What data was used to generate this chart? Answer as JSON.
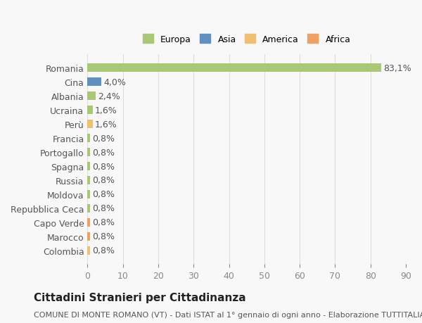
{
  "categories": [
    "Colombia",
    "Marocco",
    "Capo Verde",
    "Repubblica Ceca",
    "Moldova",
    "Russia",
    "Spagna",
    "Portogallo",
    "Francia",
    "Perù",
    "Ucraina",
    "Albania",
    "Cina",
    "Romania"
  ],
  "values": [
    0.8,
    0.8,
    0.8,
    0.8,
    0.8,
    0.8,
    0.8,
    0.8,
    0.8,
    1.6,
    1.6,
    2.4,
    4.0,
    83.1
  ],
  "labels": [
    "0,8%",
    "0,8%",
    "0,8%",
    "0,8%",
    "0,8%",
    "0,8%",
    "0,8%",
    "0,8%",
    "0,8%",
    "1,6%",
    "1,6%",
    "2,4%",
    "4,0%",
    "83,1%"
  ],
  "colors": [
    "#f0c070",
    "#f0a060",
    "#f0a060",
    "#a8c878",
    "#a8c878",
    "#a8c878",
    "#a8c878",
    "#a8c878",
    "#a8c878",
    "#f0c070",
    "#a8c878",
    "#a8c878",
    "#6090c0",
    "#a8c878"
  ],
  "continent": [
    "America",
    "Africa",
    "Africa",
    "Europa",
    "Europa",
    "Europa",
    "Europa",
    "Europa",
    "Europa",
    "America",
    "Europa",
    "Europa",
    "Asia",
    "Europa"
  ],
  "legend_labels": [
    "Europa",
    "Asia",
    "America",
    "Africa"
  ],
  "legend_colors": [
    "#a8c878",
    "#6090c0",
    "#f0c070",
    "#f0a060"
  ],
  "xlim": [
    0,
    90
  ],
  "xticks": [
    0,
    10,
    20,
    30,
    40,
    50,
    60,
    70,
    80,
    90
  ],
  "title": "Cittadini Stranieri per Cittadinanza",
  "subtitle": "COMUNE DI MONTE ROMANO (VT) - Dati ISTAT al 1° gennaio di ogni anno - Elaborazione TUTTITALIA.IT",
  "background_color": "#f8f8f8",
  "bar_height": 0.6,
  "fontsize_labels": 9,
  "fontsize_title": 11,
  "fontsize_subtitle": 8
}
